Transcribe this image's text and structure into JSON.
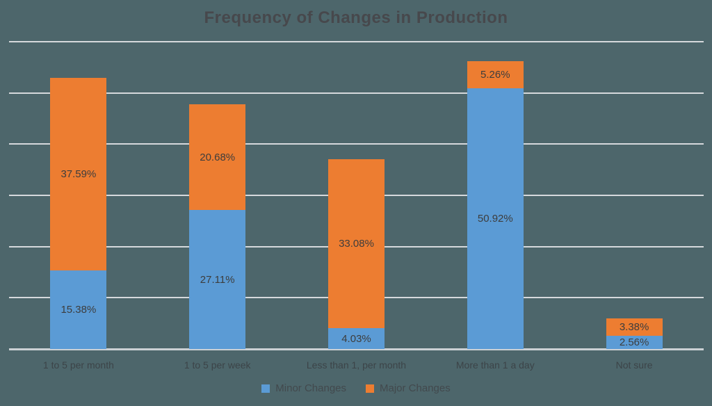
{
  "title": "Frequency of Changes in Production",
  "colors": {
    "background": "#4d666b",
    "gridline": "#d6d9dc",
    "axis_line": "#ccd1d5",
    "minor": "#5b9bd5",
    "major": "#ed7d31",
    "title_text": "#47484c",
    "data_label": "#3d3d3d",
    "axis_label": "#3c4448",
    "legend_text": "#42494d"
  },
  "chart_data": {
    "type": "bar",
    "stacked": true,
    "title": "Frequency of Changes in Production",
    "categories": [
      "1 to 5 per month",
      "1 to 5 per week",
      "Less than 1, per month",
      "More than 1 a day",
      "Not sure"
    ],
    "series": [
      {
        "name": "Minor Changes",
        "color_key": "minor",
        "values": [
          15.38,
          27.11,
          4.03,
          50.92,
          2.56
        ],
        "labels": [
          "15.38%",
          "27.11%",
          "4.03%",
          "50.92%",
          "2.56%"
        ]
      },
      {
        "name": "Major Changes",
        "color_key": "major",
        "values": [
          37.59,
          20.68,
          33.08,
          5.26,
          3.38
        ],
        "labels": [
          "37.59%",
          "20.68%",
          "33.08%",
          "5.26%",
          "3.38%"
        ]
      }
    ],
    "xlabel": "",
    "ylabel": "",
    "ylim": [
      0,
      60
    ],
    "gridline_step": 10,
    "grid": true,
    "y_axis_labels_visible": false,
    "legend_position": "bottom"
  },
  "legend": {
    "items": [
      {
        "label": "Minor Changes",
        "swatch": "minor"
      },
      {
        "label": "Major Changes",
        "swatch": "major"
      }
    ]
  }
}
